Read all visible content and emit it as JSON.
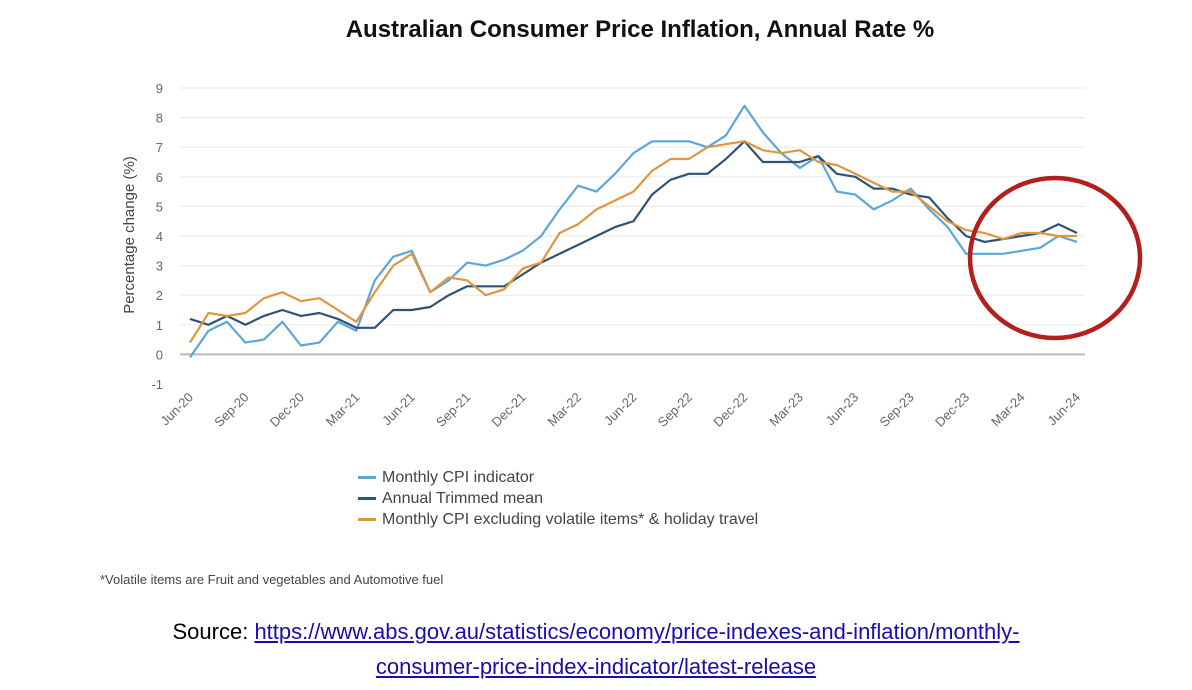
{
  "chart_data": {
    "type": "line",
    "title": "Australian Consumer Price Inflation, Annual Rate %",
    "ylabel": "Percentage change (%)",
    "xlabel": "",
    "ylim": [
      -1,
      9
    ],
    "yticks": [
      "-1",
      "0",
      "1",
      "2",
      "3",
      "4",
      "5",
      "6",
      "7",
      "8",
      "9"
    ],
    "xticks": [
      "Jun-20",
      "Sep-20",
      "Dec-20",
      "Mar-21",
      "Jun-21",
      "Sep-21",
      "Dec-21",
      "Mar-22",
      "Jun-22",
      "Sep-22",
      "Dec-22",
      "Mar-23",
      "Jun-23",
      "Sep-23",
      "Dec-23",
      "Mar-24",
      "Jun-24"
    ],
    "x_start": "Jun-20",
    "x_end": "Jun-24",
    "grid": true,
    "legend_position": "bottom",
    "series": [
      {
        "name": "Monthly CPI indicator",
        "color": "#5ba7d8",
        "values": [
          -0.1,
          0.8,
          1.1,
          0.4,
          0.5,
          1.1,
          0.3,
          0.4,
          1.1,
          0.8,
          2.5,
          3.3,
          3.5,
          2.1,
          2.5,
          3.1,
          3.0,
          3.2,
          3.5,
          4.0,
          4.9,
          5.7,
          5.5,
          6.1,
          6.8,
          7.2,
          7.2,
          7.2,
          7.0,
          7.4,
          8.4,
          7.5,
          6.8,
          6.3,
          6.7,
          5.5,
          5.4,
          4.9,
          5.2,
          5.6,
          4.9,
          4.3,
          3.4,
          3.4,
          3.4,
          3.5,
          3.6,
          4.0,
          3.8
        ]
      },
      {
        "name": "Annual Trimmed mean",
        "color": "#2e5475",
        "values": [
          1.2,
          1.0,
          1.3,
          1.0,
          1.3,
          1.5,
          1.3,
          1.4,
          1.2,
          0.9,
          0.9,
          1.5,
          1.5,
          1.6,
          2.0,
          2.3,
          2.3,
          2.3,
          2.7,
          3.1,
          3.4,
          3.7,
          4.0,
          4.3,
          4.5,
          5.4,
          5.9,
          6.1,
          6.1,
          6.6,
          7.2,
          6.5,
          6.5,
          6.5,
          6.7,
          6.1,
          6.0,
          5.6,
          5.6,
          5.4,
          5.3,
          4.6,
          4.0,
          3.8,
          3.9,
          4.0,
          4.1,
          4.4,
          4.1
        ]
      },
      {
        "name": "Monthly CPI excluding volatile items* & holiday travel",
        "color": "#e0963c",
        "values": [
          0.4,
          1.4,
          1.3,
          1.4,
          1.9,
          2.1,
          1.8,
          1.9,
          1.5,
          1.1,
          2.1,
          3.0,
          3.4,
          2.1,
          2.6,
          2.5,
          2.0,
          2.2,
          2.9,
          3.1,
          4.1,
          4.4,
          4.9,
          5.2,
          5.5,
          6.2,
          6.6,
          6.6,
          7.0,
          7.1,
          7.2,
          6.9,
          6.8,
          6.9,
          6.5,
          6.4,
          6.1,
          5.8,
          5.5,
          5.5,
          5.0,
          4.5,
          4.2,
          4.1,
          3.9,
          4.1,
          4.1,
          4.0,
          4.0
        ]
      }
    ],
    "annotations": [
      {
        "type": "circle",
        "color": "#b3201c",
        "note": "highlights Jan-24 to Jun-24"
      }
    ]
  },
  "footnote": "*Volatile items are Fruit and vegetables and Automotive fuel",
  "source": {
    "label": "Source:",
    "link_line1": "https://www.abs.gov.au/statistics/economy/price-indexes-and-inflation/monthly-",
    "link_line2": "consumer-price-index-indicator/latest-release"
  }
}
